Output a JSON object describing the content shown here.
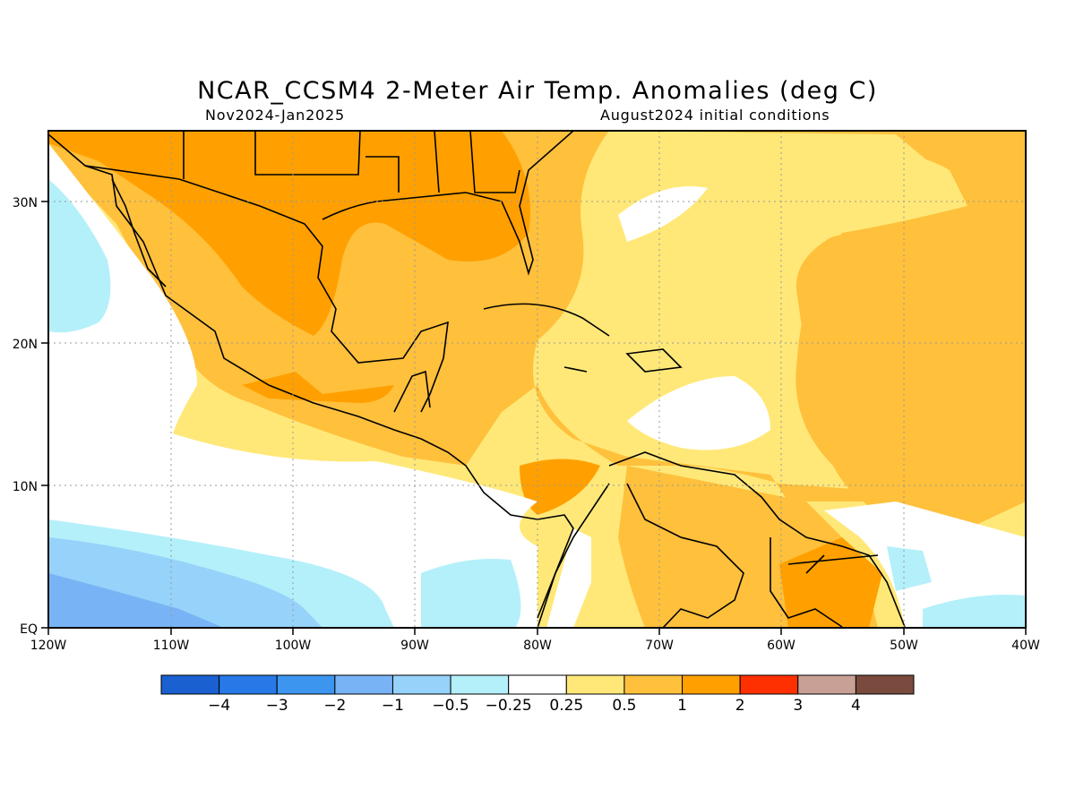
{
  "title": "NCAR_CCSM4 2-Meter Air Temp. Anomalies (deg C)",
  "subtitle_left": "Nov2024-Jan2025",
  "subtitle_right": "August2024 initial conditions",
  "map": {
    "lat_ticks": [
      "30N",
      "20N",
      "10N",
      "EQ"
    ],
    "lon_ticks": [
      "120W",
      "110W",
      "100W",
      "90W",
      "80W",
      "70W",
      "60W",
      "50W",
      "40W"
    ],
    "lat_range": [
      0,
      35
    ],
    "lon_range": [
      -120,
      -40
    ],
    "grid": "dotted"
  },
  "colorbar": {
    "colors": [
      "#1a60d0",
      "#2878e8",
      "#3c96f0",
      "#78b4f5",
      "#96d2fa",
      "#b4f0fa",
      "#ffffff",
      "#ffe878",
      "#ffc03c",
      "#ffa000",
      "#ff3000",
      "#c8a096",
      "#7a4a3e"
    ],
    "labels": [
      "-4",
      "-3",
      "-2",
      "-1",
      "-0.5",
      "-0.25",
      "0.25",
      "0.5",
      "1",
      "2",
      "3",
      "4"
    ]
  }
}
